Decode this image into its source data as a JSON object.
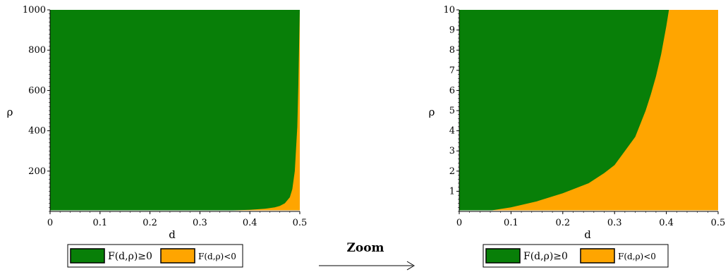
{
  "colors": {
    "region_nonneg": "#087f08",
    "region_neg": "#ffa500",
    "axis": "#000000",
    "background": "#ffffff"
  },
  "zoom": {
    "label": "Zoom",
    "arrow_icon": "right-arrow-icon"
  },
  "chart_data": [
    {
      "type": "area",
      "title": "",
      "xlabel": "d",
      "ylabel": "ρ",
      "xlim": [
        0,
        0.5
      ],
      "ylim": [
        0,
        1000
      ],
      "x_ticks": [
        "0",
        "0.1",
        "0.2",
        "0.3",
        "0.4",
        "0.5"
      ],
      "y_ticks": [
        "200",
        "400",
        "600",
        "800",
        "1000"
      ],
      "grid": false,
      "legend_position": "bottom",
      "legend": [
        {
          "label": "F(d,ρ)≥0",
          "color": "#087f08"
        },
        {
          "label": "F(d,ρ)<0",
          "color": "#ffa500"
        }
      ],
      "series": [
        {
          "name": "F(d,ρ)≥0",
          "boundary_x": [
            0.05,
            0.36,
            0.4,
            0.43,
            0.45,
            0.46,
            0.47,
            0.48,
            0.485,
            0.49,
            0.495,
            0.497,
            0.5
          ],
          "boundary_y": [
            0,
            5,
            8,
            13,
            20,
            27,
            40,
            70,
            110,
            200,
            420,
            620,
            1000
          ]
        }
      ]
    },
    {
      "type": "area",
      "title": "",
      "xlabel": "d",
      "ylabel": "ρ",
      "xlim": [
        0,
        0.5
      ],
      "ylim": [
        0,
        10
      ],
      "x_ticks": [
        "0",
        "0.1",
        "0.2",
        "0.3",
        "0.4",
        "0.5"
      ],
      "y_ticks": [
        "1",
        "2",
        "3",
        "4",
        "5",
        "6",
        "7",
        "8",
        "9",
        "10"
      ],
      "grid": false,
      "legend_position": "bottom",
      "legend": [
        {
          "label": "F(d,ρ)≥0",
          "color": "#087f08"
        },
        {
          "label": "F(d,ρ)<0",
          "color": "#ffa500"
        }
      ],
      "series": [
        {
          "name": "F(d,ρ)≥0",
          "boundary_x": [
            0.05,
            0.1,
            0.15,
            0.2,
            0.25,
            0.28,
            0.3,
            0.32,
            0.34,
            0.36,
            0.37,
            0.38,
            0.39,
            0.4,
            0.405
          ],
          "boundary_y": [
            0,
            0.2,
            0.5,
            0.9,
            1.4,
            1.9,
            2.3,
            3.0,
            3.7,
            5.0,
            5.8,
            6.7,
            7.8,
            9.2,
            10
          ]
        }
      ]
    }
  ]
}
